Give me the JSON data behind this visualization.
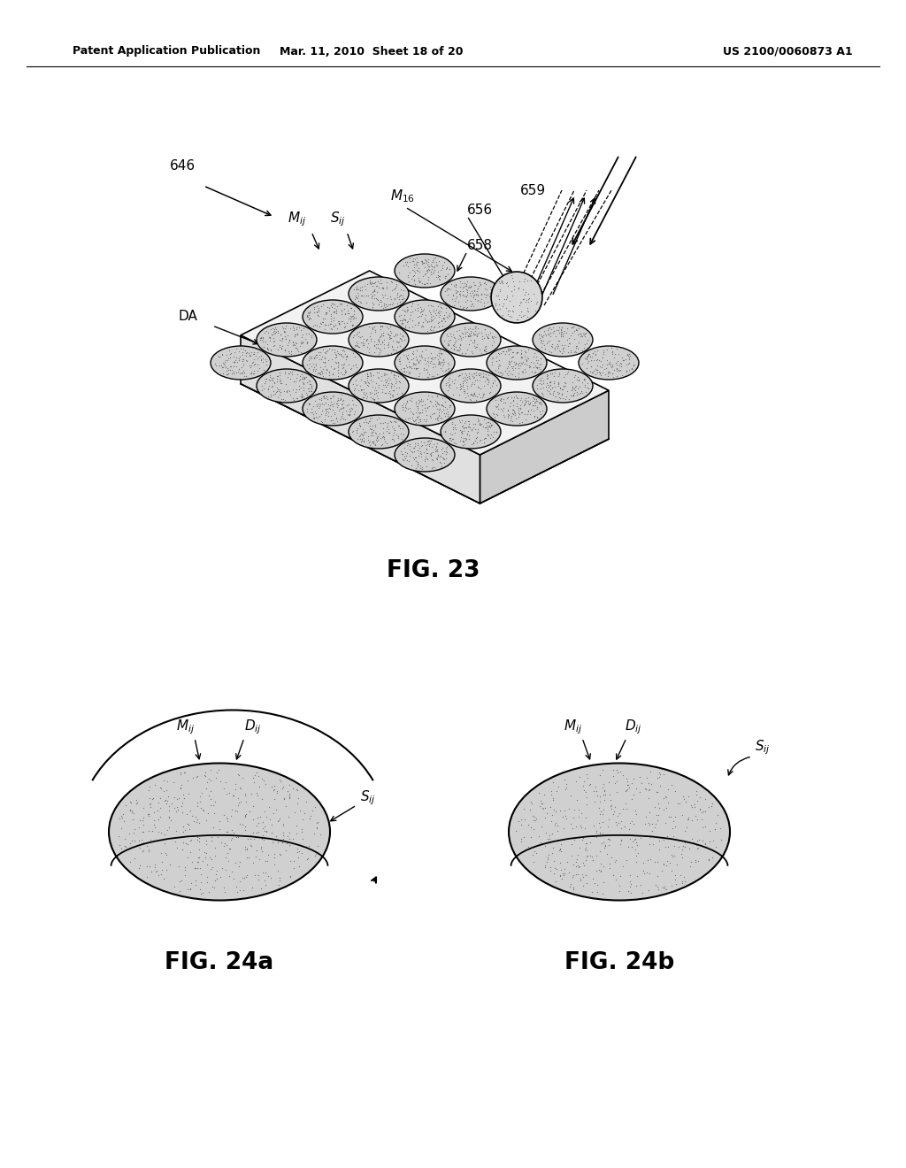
{
  "header_left": "Patent Application Publication",
  "header_mid": "Mar. 11, 2010  Sheet 18 of 20",
  "header_right": "US 2100/0060873 A1",
  "fig23_label": "FIG. 23",
  "fig24a_label": "FIG. 24a",
  "fig24b_label": "FIG. 24b",
  "bg_color": "#ffffff",
  "platform_top_color": "#f5f5f5",
  "platform_right_color": "#d8d8d8",
  "platform_bottom_color": "#ebebeb",
  "mirror_face_color": "#d0d0d0",
  "mirror_stipple_color": "#666666",
  "mirror_edge_color": "#000000"
}
